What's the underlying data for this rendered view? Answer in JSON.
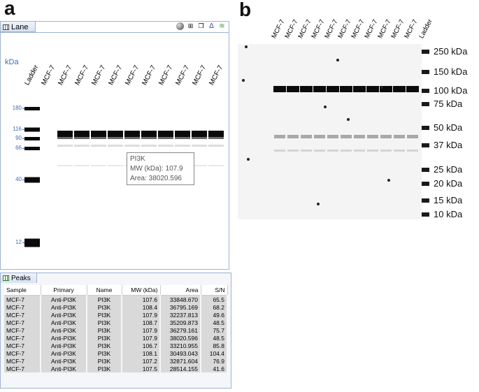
{
  "panels": {
    "left": "a",
    "right": "b"
  },
  "lane_window": {
    "tab_label": "Lane",
    "unit_label": "kDa",
    "columns": [
      "Ladder",
      "MCF-7",
      "MCF-7",
      "MCF-7",
      "MCF-7",
      "MCF-7",
      "MCF-7",
      "MCF-7",
      "MCF-7",
      "MCF-7",
      "MCF-7",
      "MCF-7"
    ],
    "ladder_marks": [
      "180",
      "116",
      "90",
      "66",
      "40",
      "12"
    ],
    "tooltip": {
      "name": "PI3K",
      "mw": "MW (kDa): 107.9",
      "area": "Area: 38020.596"
    },
    "toolbar_icons": [
      "sphere-icon",
      "fit-icon",
      "copy-icon",
      "peak-icon",
      "overlay-icon"
    ]
  },
  "peaks_window": {
    "tab_label": "Peaks",
    "headers": [
      "Sample",
      "Primary",
      "Name",
      "MW (kDa)",
      "Area",
      "S/N"
    ],
    "rows": [
      [
        "MCF-7",
        "Anti-PI3K",
        "PI3K",
        "107.6",
        "33848.670",
        "65.5"
      ],
      [
        "MCF-7",
        "Anti-PI3K",
        "PI3K",
        "108.4",
        "36795.169",
        "68.2"
      ],
      [
        "MCF-7",
        "Anti-PI3K",
        "PI3K",
        "107.9",
        "32237.813",
        "49.6"
      ],
      [
        "MCF-7",
        "Anti-PI3K",
        "PI3K",
        "108.7",
        "35209.873",
        "48.5"
      ],
      [
        "MCF-7",
        "Anti-PI3K",
        "PI3K",
        "107.9",
        "36279.161",
        "75.7"
      ],
      [
        "MCF-7",
        "Anti-PI3K",
        "PI3K",
        "107.9",
        "38020.596",
        "48.5"
      ],
      [
        "MCF-7",
        "Anti-PI3K",
        "PI3K",
        "106.7",
        "33210.955",
        "85.8"
      ],
      [
        "MCF-7",
        "Anti-PI3K",
        "PI3K",
        "108.1",
        "30493.043",
        "104.4"
      ],
      [
        "MCF-7",
        "Anti-PI3K",
        "PI3K",
        "107.2",
        "32871.604",
        "76.9"
      ],
      [
        "MCF-7",
        "Anti-PI3K",
        "PI3K",
        "107.5",
        "28514.155",
        "41.6"
      ]
    ]
  },
  "blot": {
    "lane_labels": [
      "MCF-7",
      "MCF-7",
      "MCF-7",
      "MCF-7",
      "MCF-7",
      "MCF-7",
      "MCF-7",
      "MCF-7",
      "MCF-7",
      "MCF-7",
      "MCF-7",
      "Ladder"
    ],
    "mw_labels": [
      "250 kDa",
      "150 kDa",
      "100 kDa",
      "75 kDa",
      "50 kDa",
      "37 kDa",
      "25 kDa",
      "20 kDa",
      "15 kDa",
      "10 kDa"
    ]
  }
}
